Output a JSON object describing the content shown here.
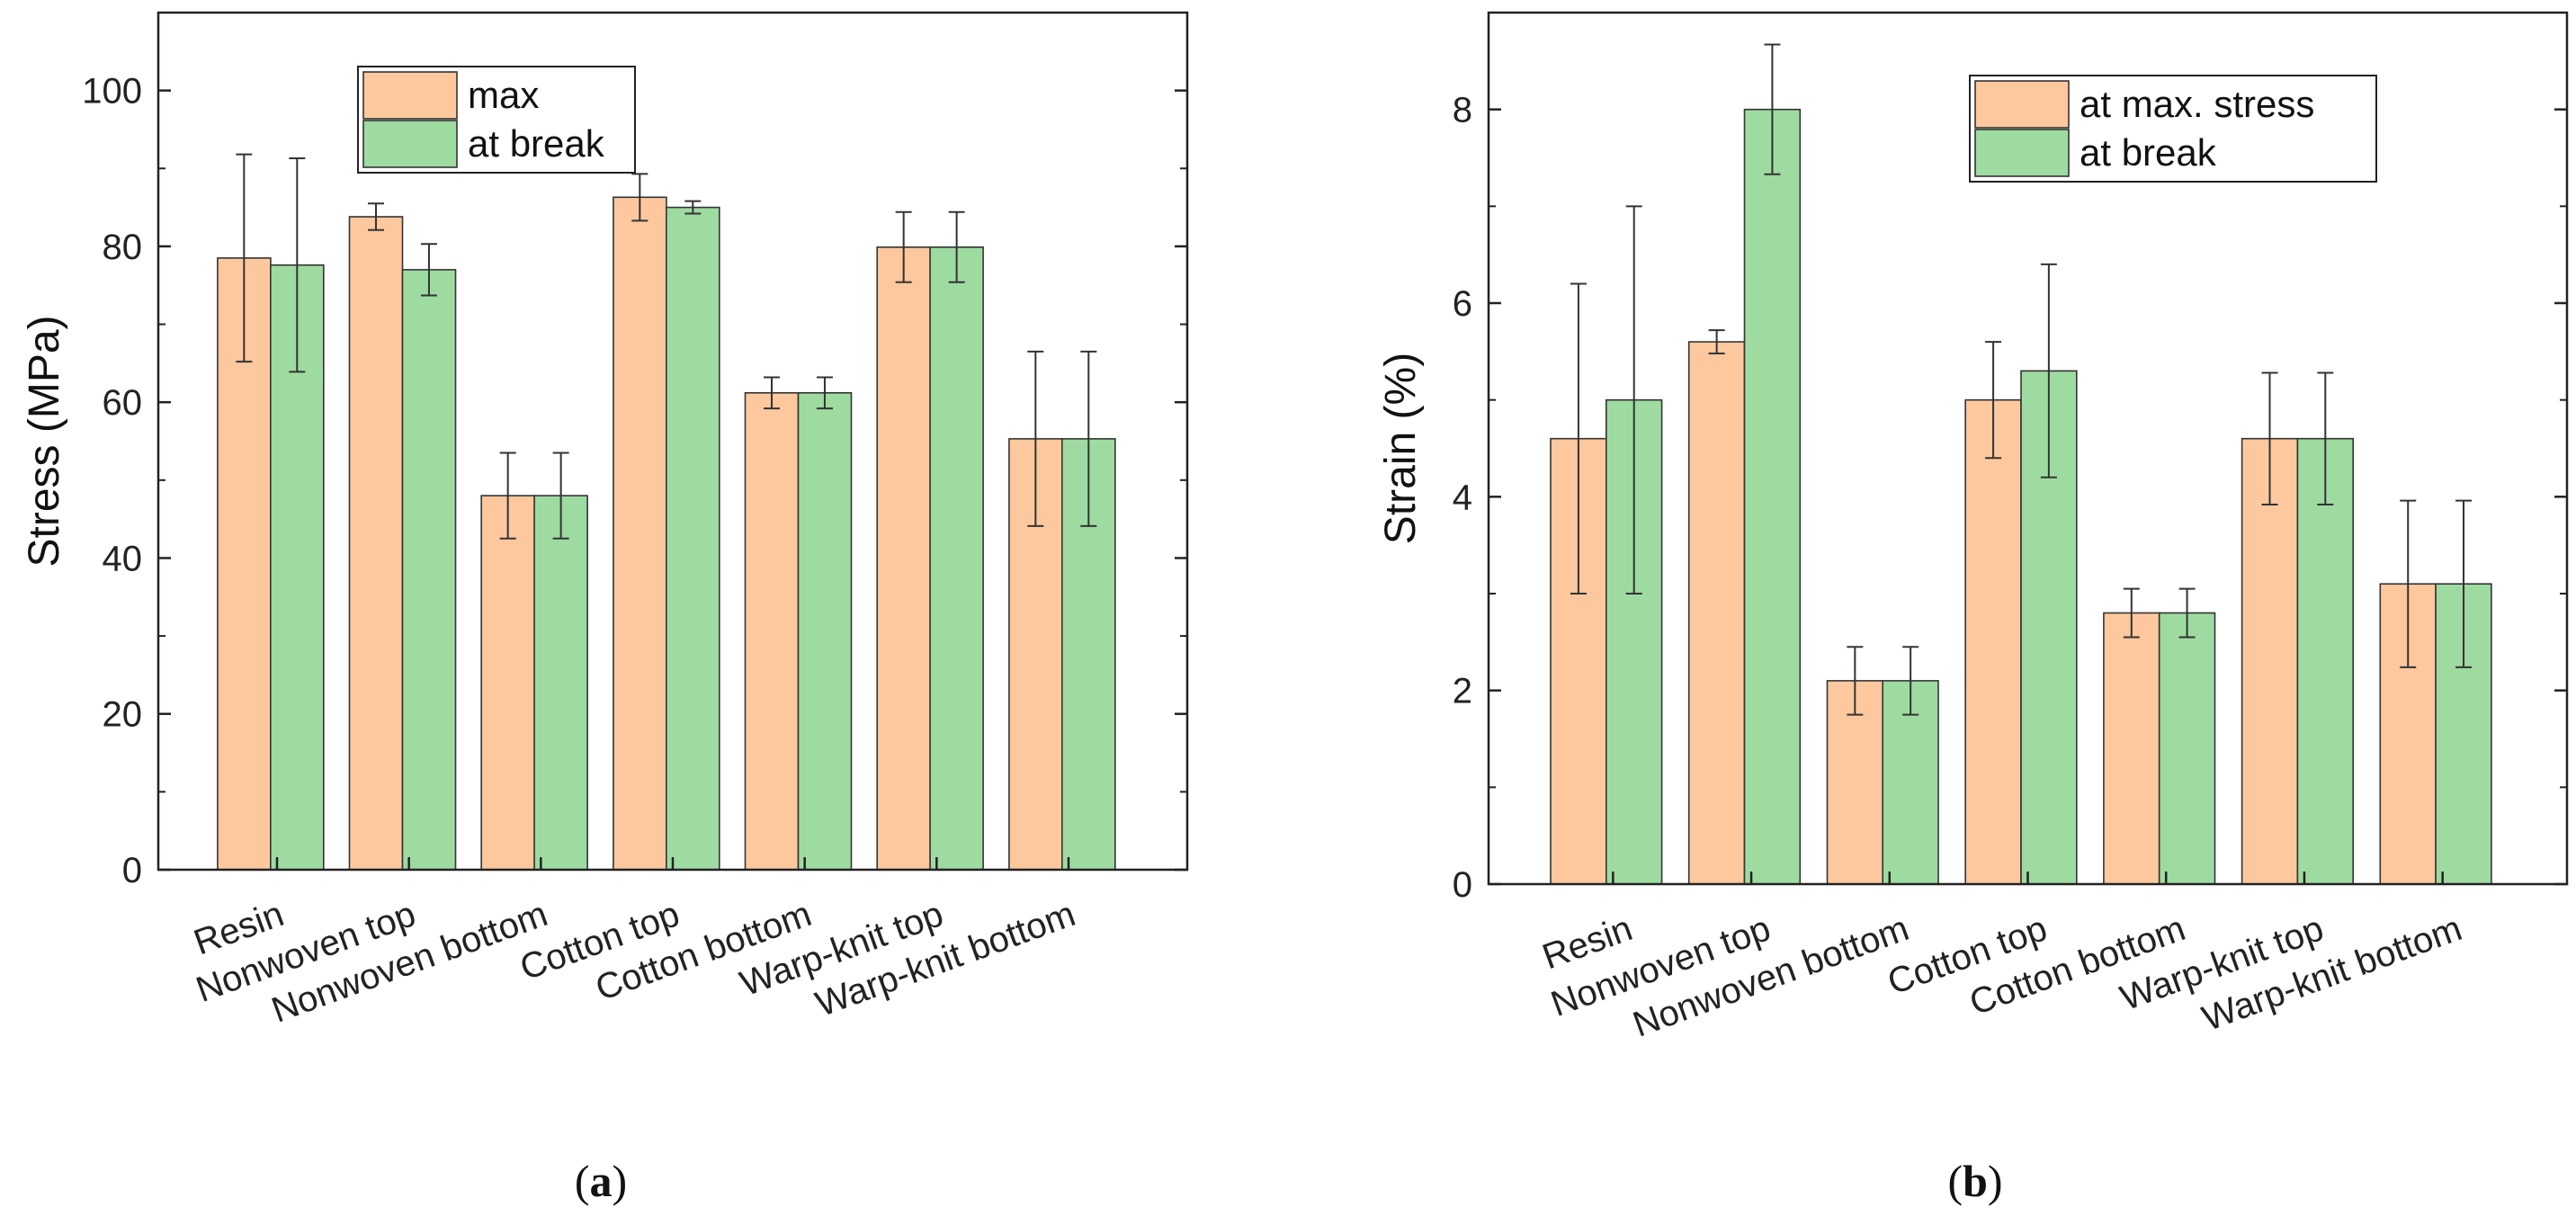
{
  "colors": {
    "series_a": "#fdc89e",
    "series_b": "#9edba1",
    "bar_stroke": "#333333",
    "axis": "#222222"
  },
  "chart_data": [
    {
      "type": "bar",
      "panel_label": "a",
      "title": "",
      "xlabel": "",
      "ylabel": "Stress (MPa)",
      "ylim": [
        0,
        110
      ],
      "yticks": [
        0,
        20,
        40,
        60,
        80,
        100
      ],
      "categories": [
        "Resin",
        "Nonwoven top",
        "Nonwoven bottom",
        "Cotton top",
        "Cotton bottom",
        "Warp-knit top",
        "Warp-knit bottom"
      ],
      "series": [
        {
          "name": "max",
          "values": [
            78.5,
            83.8,
            48.0,
            86.3,
            61.2,
            79.9,
            55.3
          ],
          "errors": [
            13.3,
            1.7,
            5.5,
            3.0,
            2.0,
            4.5,
            11.2
          ]
        },
        {
          "name": "at break",
          "values": [
            77.6,
            77.0,
            48.0,
            85.0,
            61.2,
            79.9,
            55.3
          ],
          "errors": [
            13.7,
            3.3,
            5.5,
            0.8,
            2.0,
            4.5,
            11.2
          ]
        }
      ],
      "legend": "top-center",
      "grid": false
    },
    {
      "type": "bar",
      "panel_label": "b",
      "title": "",
      "xlabel": "",
      "ylabel": "Strain (%)",
      "ylim": [
        0,
        9
      ],
      "yticks": [
        0,
        2,
        4,
        6,
        8
      ],
      "categories": [
        "Resin",
        "Nonwoven top",
        "Nonwoven bottom",
        "Cotton top",
        "Cotton bottom",
        "Warp-knit top",
        "Warp-knit bottom"
      ],
      "series": [
        {
          "name": "at max. stress",
          "values": [
            4.6,
            5.6,
            2.1,
            5.0,
            2.8,
            4.6,
            3.1
          ],
          "errors": [
            1.6,
            0.12,
            0.35,
            0.6,
            0.25,
            0.68,
            0.86
          ]
        },
        {
          "name": "at break",
          "values": [
            5.0,
            8.0,
            2.1,
            5.3,
            2.8,
            4.6,
            3.1
          ],
          "errors": [
            2.0,
            0.67,
            0.35,
            1.1,
            0.25,
            0.68,
            0.86
          ]
        }
      ],
      "legend": "top-right",
      "grid": false
    }
  ]
}
